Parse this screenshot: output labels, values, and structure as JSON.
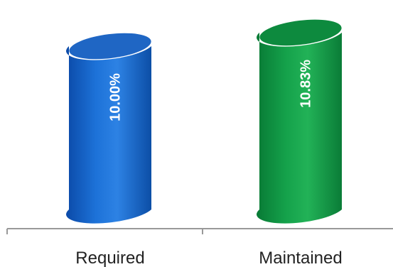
{
  "chart_data": {
    "type": "bar",
    "style": "cylinder",
    "categories": [
      "Required",
      "Maintained"
    ],
    "values": [
      10.0,
      10.83
    ],
    "data_labels": [
      "10.00%",
      "10.83%"
    ],
    "colors": [
      "#1565c8",
      "#0f9a45"
    ],
    "title": "",
    "xlabel": "",
    "ylabel": "",
    "grid": false,
    "legend": "none"
  }
}
